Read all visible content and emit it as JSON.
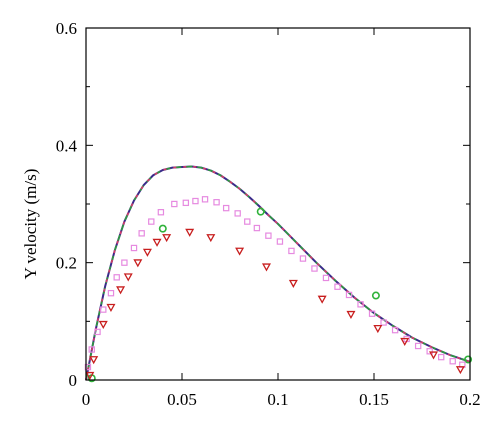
{
  "chart_data": {
    "type": "scatter",
    "title": "",
    "xlabel": "",
    "ylabel": "Y velocity (m/s)",
    "xlim": [
      0,
      0.2
    ],
    "ylim": [
      0,
      0.6
    ],
    "x_ticks": [
      0,
      0.05,
      0.1,
      0.15,
      0.2
    ],
    "y_ticks": [
      0,
      0.2,
      0.4,
      0.6
    ],
    "x_tick_labels": [
      "0",
      "0.05",
      "0.1",
      "0.15",
      "0.2"
    ],
    "y_tick_labels": [
      "0",
      "0.2",
      "0.4",
      "0.6"
    ],
    "grid": false,
    "legend": "none",
    "series": [
      {
        "kind": "line",
        "style": "solid",
        "color": "#3a2a8a",
        "x": [
          0,
          0.005,
          0.01,
          0.015,
          0.02,
          0.025,
          0.03,
          0.035,
          0.04,
          0.045,
          0.05,
          0.055,
          0.06,
          0.065,
          0.07,
          0.075,
          0.08,
          0.085,
          0.09,
          0.095,
          0.1,
          0.11,
          0.12,
          0.13,
          0.14,
          0.15,
          0.16,
          0.17,
          0.18,
          0.19,
          0.2
        ],
        "y": [
          0,
          0.085,
          0.16,
          0.221,
          0.27,
          0.306,
          0.332,
          0.349,
          0.358,
          0.362,
          0.363,
          0.364,
          0.362,
          0.357,
          0.349,
          0.338,
          0.326,
          0.312,
          0.297,
          0.281,
          0.266,
          0.233,
          0.2,
          0.169,
          0.14,
          0.114,
          0.092,
          0.072,
          0.056,
          0.042,
          0.031
        ]
      },
      {
        "kind": "line",
        "style": "dashed",
        "color": "#2e9a3e",
        "x": [
          0,
          0.005,
          0.01,
          0.015,
          0.02,
          0.025,
          0.03,
          0.035,
          0.04,
          0.045,
          0.05,
          0.055,
          0.06,
          0.065,
          0.07,
          0.075,
          0.08,
          0.085,
          0.09,
          0.095,
          0.1,
          0.11,
          0.12,
          0.13,
          0.14,
          0.15,
          0.16,
          0.17,
          0.18,
          0.19,
          0.2
        ],
        "y": [
          0,
          0.085,
          0.16,
          0.221,
          0.27,
          0.306,
          0.332,
          0.349,
          0.358,
          0.362,
          0.363,
          0.364,
          0.362,
          0.357,
          0.349,
          0.338,
          0.326,
          0.312,
          0.297,
          0.281,
          0.266,
          0.233,
          0.2,
          0.169,
          0.14,
          0.114,
          0.092,
          0.072,
          0.056,
          0.042,
          0.031
        ]
      },
      {
        "kind": "line",
        "style": "dashed",
        "color": "#d43a6a",
        "x": [
          0,
          0.005,
          0.01,
          0.015,
          0.02,
          0.025,
          0.03,
          0.035,
          0.04,
          0.045,
          0.05,
          0.055,
          0.06,
          0.065,
          0.07,
          0.075,
          0.08,
          0.085,
          0.09,
          0.095,
          0.1,
          0.11,
          0.12,
          0.13,
          0.14,
          0.15,
          0.16,
          0.17,
          0.18,
          0.19,
          0.2
        ],
        "y": [
          0,
          0.085,
          0.16,
          0.221,
          0.27,
          0.306,
          0.332,
          0.349,
          0.358,
          0.362,
          0.363,
          0.364,
          0.362,
          0.357,
          0.349,
          0.338,
          0.326,
          0.312,
          0.297,
          0.281,
          0.266,
          0.233,
          0.2,
          0.169,
          0.14,
          0.114,
          0.092,
          0.072,
          0.056,
          0.042,
          0.031
        ]
      },
      {
        "kind": "markers",
        "marker": "circle",
        "color": "#2fb23a",
        "x": [
          0.003,
          0.04,
          0.091,
          0.151,
          0.199
        ],
        "y": [
          0.003,
          0.258,
          0.287,
          0.144,
          0.035
        ]
      },
      {
        "kind": "markers",
        "marker": "square",
        "color": "#e68ae0",
        "x": [
          0.001,
          0.003,
          0.006,
          0.009,
          0.013,
          0.016,
          0.02,
          0.025,
          0.029,
          0.034,
          0.039,
          0.046,
          0.052,
          0.057,
          0.062,
          0.068,
          0.073,
          0.079,
          0.084,
          0.089,
          0.095,
          0.101,
          0.107,
          0.113,
          0.119,
          0.125,
          0.131,
          0.137,
          0.143,
          0.149,
          0.155,
          0.161,
          0.167,
          0.173,
          0.179,
          0.185,
          0.191,
          0.196
        ],
        "y": [
          0.022,
          0.052,
          0.082,
          0.12,
          0.148,
          0.175,
          0.2,
          0.225,
          0.25,
          0.27,
          0.286,
          0.3,
          0.302,
          0.305,
          0.308,
          0.303,
          0.293,
          0.284,
          0.27,
          0.259,
          0.246,
          0.236,
          0.22,
          0.207,
          0.19,
          0.174,
          0.159,
          0.145,
          0.129,
          0.113,
          0.098,
          0.085,
          0.07,
          0.058,
          0.049,
          0.039,
          0.032,
          0.026
        ]
      },
      {
        "kind": "markers",
        "marker": "triangle-down",
        "color": "#c81e1e",
        "x": [
          0.002,
          0.004,
          0.009,
          0.013,
          0.018,
          0.022,
          0.027,
          0.032,
          0.037,
          0.042,
          0.054,
          0.065,
          0.08,
          0.094,
          0.108,
          0.123,
          0.138,
          0.152,
          0.166,
          0.181,
          0.195
        ],
        "y": [
          0.008,
          0.035,
          0.095,
          0.124,
          0.154,
          0.176,
          0.2,
          0.218,
          0.235,
          0.243,
          0.252,
          0.243,
          0.22,
          0.193,
          0.165,
          0.138,
          0.112,
          0.088,
          0.066,
          0.043,
          0.018
        ]
      }
    ]
  }
}
